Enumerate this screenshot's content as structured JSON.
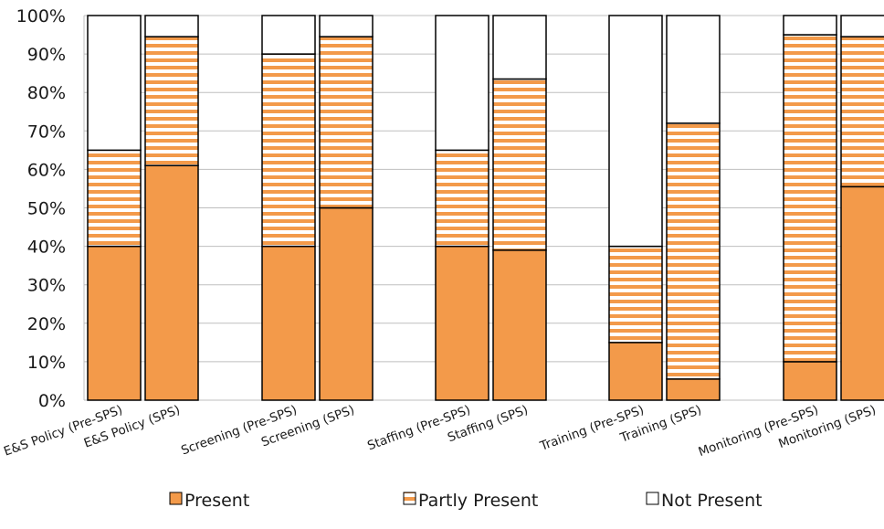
{
  "colors": {
    "present": "#f39a4a",
    "partly_present_fill": "#ffffff",
    "partly_present_stripe": "#f39a4a",
    "not_present": "#ffffff",
    "bar_stroke": "#000000",
    "grid": "#bfbfbf"
  },
  "chart_data": {
    "type": "bar",
    "stacked": true,
    "percent_axis": true,
    "categories": [
      "E&S Policy (Pre-SPS)",
      "E&S Policy (SPS)",
      "Screening (Pre-SPS)",
      "Screening (SPS)",
      "Staffing (Pre-SPS)",
      "Staffing (SPS)",
      "Training (Pre-SPS)",
      "Training (SPS)",
      "Monitoring (Pre-SPS)",
      "Monitoring (SPS)"
    ],
    "series": [
      {
        "name": "Present",
        "values": [
          40,
          61,
          40,
          50,
          40,
          39,
          15,
          5.5,
          10,
          55.5
        ]
      },
      {
        "name": "Partly Present",
        "values": [
          25,
          33.5,
          50,
          44.5,
          25,
          44.5,
          25,
          66.5,
          85,
          39
        ]
      },
      {
        "name": "Not Present",
        "values": [
          35,
          5.5,
          10,
          5.5,
          35,
          16.5,
          60,
          28,
          5,
          5.5
        ]
      }
    ],
    "ylim": [
      0,
      100
    ],
    "yticks": [
      "0%",
      "10%",
      "20%",
      "30%",
      "40%",
      "50%",
      "60%",
      "70%",
      "80%",
      "90%",
      "100%"
    ],
    "title": "",
    "xlabel": "",
    "ylabel": "",
    "grid": true,
    "legend_position": "bottom"
  }
}
